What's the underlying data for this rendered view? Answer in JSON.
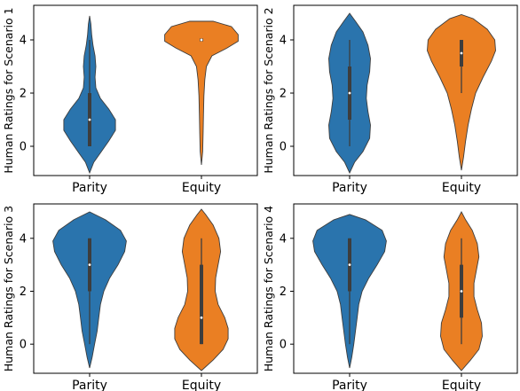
{
  "colors": {
    "Parity": "#2a74ad",
    "Equity": "#ea7f23"
  },
  "chart_data": [
    {
      "type": "violin",
      "title": "",
      "xlabel": "",
      "ylabel": "Human Ratings for Scenario 1",
      "ylim": [
        -1.1,
        5.3
      ],
      "yticks": [
        "0",
        "2",
        "4"
      ],
      "categories": [
        "Parity",
        "Equity"
      ],
      "series": [
        {
          "category": "Parity",
          "min": 0,
          "q1": 0,
          "median": 1,
          "q3": 2,
          "max": 4,
          "density": [
            [
              -1.0,
              0.0
            ],
            [
              -0.6,
              0.1
            ],
            [
              -0.2,
              0.28
            ],
            [
              0.2,
              0.46
            ],
            [
              0.6,
              0.62
            ],
            [
              1.0,
              0.62
            ],
            [
              1.4,
              0.46
            ],
            [
              1.8,
              0.26
            ],
            [
              2.2,
              0.15
            ],
            [
              2.6,
              0.13
            ],
            [
              3.0,
              0.15
            ],
            [
              3.4,
              0.13
            ],
            [
              3.8,
              0.08
            ],
            [
              4.2,
              0.05
            ],
            [
              4.6,
              0.03
            ],
            [
              4.9,
              0.0
            ]
          ]
        },
        {
          "category": "Equity",
          "min": 4,
          "q1": 4,
          "median": 4,
          "q3": 4,
          "max": 4,
          "density": [
            [
              -0.7,
              0.0
            ],
            [
              -0.2,
              0.03
            ],
            [
              0.5,
              0.04
            ],
            [
              1.2,
              0.05
            ],
            [
              1.9,
              0.06
            ],
            [
              2.5,
              0.08
            ],
            [
              3.0,
              0.12
            ],
            [
              3.4,
              0.25
            ],
            [
              3.7,
              0.62
            ],
            [
              3.95,
              0.88
            ],
            [
              4.2,
              0.88
            ],
            [
              4.5,
              0.72
            ],
            [
              4.7,
              0.28
            ],
            [
              4.7,
              0.0
            ]
          ]
        }
      ]
    },
    {
      "type": "violin",
      "title": "",
      "xlabel": "",
      "ylabel": "Human Ratings for Scenario 2",
      "ylim": [
        -1.1,
        5.3
      ],
      "yticks": [
        "0",
        "2",
        "4"
      ],
      "categories": [
        "Parity",
        "Equity"
      ],
      "series": [
        {
          "category": "Parity",
          "min": 0,
          "q1": 1,
          "median": 2,
          "q3": 3,
          "max": 4,
          "density": [
            [
              -1.0,
              0.0
            ],
            [
              -0.6,
              0.12
            ],
            [
              -0.2,
              0.32
            ],
            [
              0.3,
              0.48
            ],
            [
              0.8,
              0.5
            ],
            [
              1.3,
              0.44
            ],
            [
              1.8,
              0.4
            ],
            [
              2.3,
              0.42
            ],
            [
              2.8,
              0.48
            ],
            [
              3.3,
              0.5
            ],
            [
              3.8,
              0.44
            ],
            [
              4.3,
              0.32
            ],
            [
              4.7,
              0.14
            ],
            [
              5.0,
              0.0
            ]
          ]
        },
        {
          "category": "Equity",
          "min": 2,
          "q1": 3,
          "median": 3.5,
          "q3": 4,
          "max": 4,
          "density": [
            [
              -0.9,
              0.0
            ],
            [
              -0.4,
              0.05
            ],
            [
              0.2,
              0.1
            ],
            [
              0.8,
              0.16
            ],
            [
              1.4,
              0.24
            ],
            [
              2.0,
              0.34
            ],
            [
              2.6,
              0.52
            ],
            [
              3.2,
              0.72
            ],
            [
              3.6,
              0.82
            ],
            [
              4.0,
              0.8
            ],
            [
              4.4,
              0.62
            ],
            [
              4.8,
              0.28
            ],
            [
              4.95,
              0.0
            ]
          ]
        }
      ]
    },
    {
      "type": "violin",
      "title": "",
      "xlabel": "",
      "ylabel": "Human Ratings for Scenario 3",
      "ylim": [
        -1.1,
        5.3
      ],
      "yticks": [
        "0",
        "2",
        "4"
      ],
      "categories": [
        "Parity",
        "Equity"
      ],
      "series": [
        {
          "category": "Parity",
          "min": 0,
          "q1": 2,
          "median": 3,
          "q3": 4,
          "max": 4,
          "density": [
            [
              -0.9,
              0.0
            ],
            [
              -0.5,
              0.06
            ],
            [
              0.0,
              0.12
            ],
            [
              0.5,
              0.18
            ],
            [
              1.0,
              0.22
            ],
            [
              1.5,
              0.26
            ],
            [
              2.0,
              0.34
            ],
            [
              2.5,
              0.48
            ],
            [
              3.0,
              0.68
            ],
            [
              3.5,
              0.84
            ],
            [
              3.9,
              0.88
            ],
            [
              4.3,
              0.74
            ],
            [
              4.7,
              0.38
            ],
            [
              5.0,
              0.0
            ]
          ]
        },
        {
          "category": "Equity",
          "min": 0,
          "q1": 0,
          "median": 1,
          "q3": 3,
          "max": 4,
          "density": [
            [
              -1.0,
              0.0
            ],
            [
              -0.6,
              0.28
            ],
            [
              -0.2,
              0.52
            ],
            [
              0.2,
              0.64
            ],
            [
              0.6,
              0.64
            ],
            [
              1.0,
              0.56
            ],
            [
              1.5,
              0.4
            ],
            [
              2.0,
              0.33
            ],
            [
              2.5,
              0.34
            ],
            [
              3.0,
              0.4
            ],
            [
              3.5,
              0.46
            ],
            [
              4.0,
              0.42
            ],
            [
              4.5,
              0.28
            ],
            [
              4.9,
              0.1
            ],
            [
              5.1,
              0.0
            ]
          ]
        }
      ]
    },
    {
      "type": "violin",
      "title": "",
      "xlabel": "",
      "ylabel": "Human Ratings for Scenario 4",
      "ylim": [
        -1.1,
        5.3
      ],
      "yticks": [
        "0",
        "2",
        "4"
      ],
      "categories": [
        "Parity",
        "Equity"
      ],
      "series": [
        {
          "category": "Parity",
          "min": 0,
          "q1": 2,
          "median": 3,
          "q3": 4,
          "max": 4,
          "density": [
            [
              -0.9,
              0.0
            ],
            [
              -0.5,
              0.05
            ],
            [
              0.0,
              0.1
            ],
            [
              0.5,
              0.14
            ],
            [
              1.0,
              0.18
            ],
            [
              1.5,
              0.22
            ],
            [
              2.0,
              0.3
            ],
            [
              2.5,
              0.46
            ],
            [
              3.0,
              0.66
            ],
            [
              3.5,
              0.84
            ],
            [
              3.9,
              0.88
            ],
            [
              4.3,
              0.78
            ],
            [
              4.7,
              0.38
            ],
            [
              4.9,
              0.0
            ]
          ]
        },
        {
          "category": "Equity",
          "min": 0,
          "q1": 1,
          "median": 2,
          "q3": 3,
          "max": 4,
          "density": [
            [
              -1.0,
              0.0
            ],
            [
              -0.6,
              0.22
            ],
            [
              -0.2,
              0.42
            ],
            [
              0.3,
              0.5
            ],
            [
              0.8,
              0.48
            ],
            [
              1.3,
              0.38
            ],
            [
              1.8,
              0.3
            ],
            [
              2.3,
              0.3
            ],
            [
              2.8,
              0.36
            ],
            [
              3.3,
              0.42
            ],
            [
              3.8,
              0.38
            ],
            [
              4.3,
              0.26
            ],
            [
              4.7,
              0.1
            ],
            [
              5.0,
              0.0
            ]
          ]
        }
      ]
    }
  ]
}
